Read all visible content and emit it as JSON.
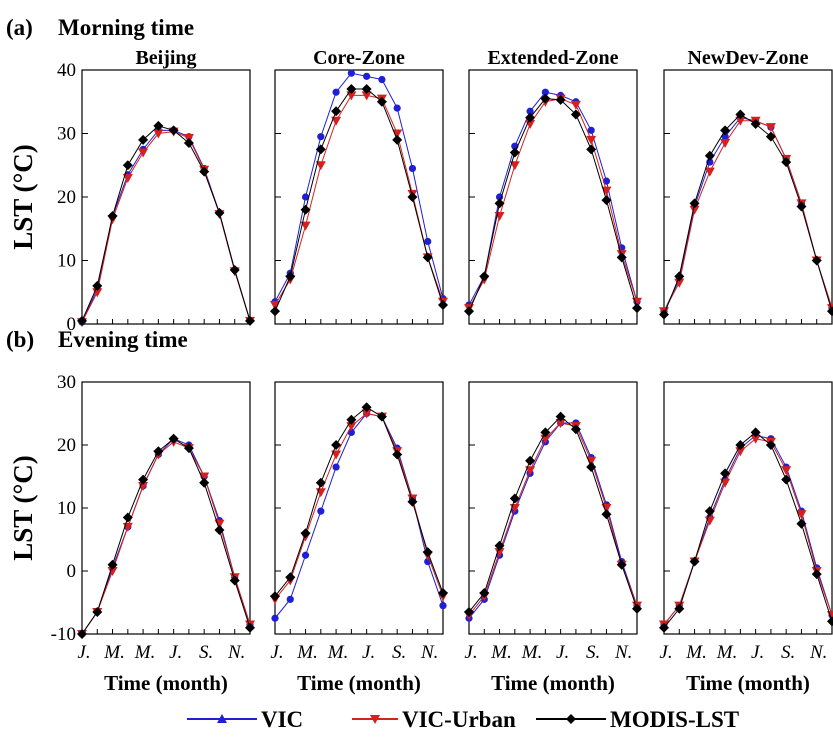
{
  "figure": {
    "legend": [
      {
        "name": "VIC",
        "color": "#1f1fd6",
        "marker": "triangle-up"
      },
      {
        "name": "VIC-Urban",
        "color": "#d62020",
        "marker": "triangle-down"
      },
      {
        "name": "MODIS-LST",
        "color": "#000000",
        "marker": "diamond"
      }
    ],
    "x_tick_labels": [
      "J.",
      "M.",
      "M.",
      "J.",
      "S.",
      "N."
    ]
  },
  "chart_data": [
    {
      "type": "line",
      "panel_label": "(a)",
      "row_title": "Morning time",
      "title": "Beijing",
      "ylabel": "LST (°C)",
      "xlabel": "",
      "ylim": [
        0,
        40
      ],
      "yticks": [
        0,
        10,
        20,
        30,
        40
      ],
      "x": [
        1,
        2,
        3,
        4,
        5,
        6,
        7,
        8,
        9,
        10,
        11,
        12
      ],
      "series": [
        {
          "name": "VIC",
          "values": [
            0.3,
            5.5,
            17.0,
            23.5,
            27.5,
            30.5,
            30.5,
            29.5,
            24.5,
            17.5,
            8.5,
            0.5
          ]
        },
        {
          "name": "VIC-Urban",
          "values": [
            0.3,
            5.0,
            16.5,
            23.0,
            27.0,
            30.0,
            30.3,
            29.3,
            24.3,
            17.3,
            8.3,
            0.5
          ]
        },
        {
          "name": "MODIS-LST",
          "values": [
            0.5,
            6.0,
            17.0,
            25.0,
            29.0,
            31.2,
            30.5,
            28.5,
            24.0,
            17.5,
            8.5,
            0.5
          ]
        }
      ]
    },
    {
      "type": "line",
      "panel_label": "",
      "row_title": "",
      "title": "Core-Zone",
      "ylabel": "",
      "xlabel": "",
      "ylim": [
        0,
        40
      ],
      "x": [
        1,
        2,
        3,
        4,
        5,
        6,
        7,
        8,
        9,
        10,
        11,
        12
      ],
      "series": [
        {
          "name": "VIC",
          "values": [
            3.5,
            8.0,
            20.0,
            29.5,
            36.5,
            39.5,
            39.0,
            38.5,
            34.0,
            24.5,
            13.0,
            4.0
          ]
        },
        {
          "name": "VIC-Urban",
          "values": [
            3.0,
            7.0,
            15.5,
            25.0,
            32.0,
            36.0,
            36.0,
            35.5,
            30.0,
            20.5,
            10.5,
            3.5
          ]
        },
        {
          "name": "MODIS-LST",
          "values": [
            2.0,
            7.5,
            18.0,
            27.5,
            33.5,
            37.0,
            37.0,
            35.0,
            29.0,
            20.0,
            10.5,
            3.0
          ]
        }
      ]
    },
    {
      "type": "line",
      "panel_label": "",
      "row_title": "",
      "title": "Extended-Zone",
      "ylabel": "",
      "xlabel": "",
      "ylim": [
        0,
        40
      ],
      "x": [
        1,
        2,
        3,
        4,
        5,
        6,
        7,
        8,
        9,
        10,
        11,
        12
      ],
      "series": [
        {
          "name": "VIC",
          "values": [
            3.0,
            7.5,
            20.0,
            28.0,
            33.5,
            36.5,
            36.0,
            35.0,
            30.5,
            22.5,
            12.0,
            3.5
          ]
        },
        {
          "name": "VIC-Urban",
          "values": [
            2.5,
            7.0,
            17.0,
            25.0,
            31.5,
            35.0,
            35.5,
            34.5,
            29.0,
            21.0,
            11.0,
            3.5
          ]
        },
        {
          "name": "MODIS-LST",
          "values": [
            2.0,
            7.5,
            19.0,
            27.0,
            32.5,
            35.5,
            35.3,
            33.0,
            27.5,
            19.5,
            10.5,
            2.5
          ]
        }
      ]
    },
    {
      "type": "line",
      "panel_label": "",
      "row_title": "",
      "title": "NewDev-Zone",
      "ylabel": "",
      "xlabel": "",
      "ylim": [
        0,
        40
      ],
      "x": [
        1,
        2,
        3,
        4,
        5,
        6,
        7,
        8,
        9,
        10,
        11,
        12
      ],
      "series": [
        {
          "name": "VIC",
          "values": [
            2.0,
            7.0,
            18.5,
            25.5,
            29.5,
            32.5,
            32.0,
            31.0,
            26.0,
            19.0,
            10.0,
            2.5
          ]
        },
        {
          "name": "VIC-Urban",
          "values": [
            2.0,
            6.5,
            18.0,
            24.0,
            28.5,
            32.0,
            32.0,
            31.0,
            26.0,
            19.0,
            10.0,
            2.5
          ]
        },
        {
          "name": "MODIS-LST",
          "values": [
            1.5,
            7.5,
            19.0,
            26.5,
            30.5,
            33.0,
            31.5,
            29.5,
            25.5,
            18.5,
            10.0,
            2.0
          ]
        }
      ]
    },
    {
      "type": "line",
      "panel_label": "(b)",
      "row_title": "Evening time",
      "title": "",
      "ylabel": "LST (°C)",
      "xlabel": "Time (month)",
      "ylim": [
        -10,
        30
      ],
      "yticks": [
        -10,
        0,
        10,
        20,
        30
      ],
      "x": [
        1,
        2,
        3,
        4,
        5,
        6,
        7,
        8,
        9,
        10,
        11,
        12
      ],
      "series": [
        {
          "name": "VIC",
          "values": [
            -10.0,
            -6.5,
            0.5,
            7.0,
            13.5,
            18.5,
            21.0,
            20.0,
            15.0,
            8.0,
            -1.0,
            -8.5
          ]
        },
        {
          "name": "VIC-Urban",
          "values": [
            -10.0,
            -6.5,
            0.0,
            7.0,
            13.5,
            18.5,
            20.5,
            19.5,
            15.0,
            7.5,
            -1.0,
            -8.5
          ]
        },
        {
          "name": "MODIS-LST",
          "values": [
            -10.0,
            -6.5,
            1.0,
            8.5,
            14.5,
            19.0,
            21.0,
            19.5,
            14.0,
            6.5,
            -1.5,
            -9.0
          ]
        }
      ]
    },
    {
      "type": "line",
      "panel_label": "",
      "row_title": "",
      "title": "",
      "ylabel": "",
      "xlabel": "Time (month)",
      "ylim": [
        -10,
        30
      ],
      "x": [
        1,
        2,
        3,
        4,
        5,
        6,
        7,
        8,
        9,
        10,
        11,
        12
      ],
      "series": [
        {
          "name": "VIC",
          "values": [
            -7.5,
            -4.5,
            2.5,
            9.5,
            16.5,
            22.0,
            25.0,
            24.5,
            19.5,
            11.5,
            1.5,
            -5.5
          ]
        },
        {
          "name": "VIC-Urban",
          "values": [
            -4.5,
            -1.5,
            5.5,
            12.5,
            18.5,
            23.0,
            25.0,
            24.5,
            19.0,
            11.5,
            2.5,
            -4.0
          ]
        },
        {
          "name": "MODIS-LST",
          "values": [
            -4.0,
            -1.0,
            6.0,
            14.0,
            20.0,
            24.0,
            26.0,
            24.5,
            18.5,
            11.0,
            3.0,
            -3.5
          ]
        }
      ]
    },
    {
      "type": "line",
      "panel_label": "",
      "row_title": "",
      "title": "",
      "ylabel": "",
      "xlabel": "Time (month)",
      "ylim": [
        -10,
        30
      ],
      "x": [
        1,
        2,
        3,
        4,
        5,
        6,
        7,
        8,
        9,
        10,
        11,
        12
      ],
      "series": [
        {
          "name": "VIC",
          "values": [
            -7.5,
            -4.5,
            2.5,
            9.5,
            15.5,
            20.5,
            23.5,
            23.5,
            18.0,
            10.5,
            1.5,
            -5.5
          ]
        },
        {
          "name": "VIC-Urban",
          "values": [
            -7.0,
            -4.0,
            3.0,
            10.0,
            16.0,
            21.0,
            23.5,
            23.0,
            17.5,
            10.0,
            1.0,
            -5.5
          ]
        },
        {
          "name": "MODIS-LST",
          "values": [
            -6.5,
            -3.5,
            4.0,
            11.5,
            17.5,
            22.0,
            24.5,
            22.5,
            16.5,
            9.0,
            1.0,
            -6.0
          ]
        }
      ]
    },
    {
      "type": "line",
      "panel_label": "",
      "row_title": "",
      "title": "",
      "ylabel": "",
      "xlabel": "Time (month)",
      "ylim": [
        -10,
        30
      ],
      "x": [
        1,
        2,
        3,
        4,
        5,
        6,
        7,
        8,
        9,
        10,
        11,
        12
      ],
      "series": [
        {
          "name": "VIC",
          "values": [
            -8.5,
            -5.5,
            1.5,
            8.5,
            14.5,
            19.5,
            21.5,
            21.0,
            16.5,
            9.5,
            0.5,
            -7.0
          ]
        },
        {
          "name": "VIC-Urban",
          "values": [
            -8.5,
            -5.5,
            1.5,
            8.0,
            14.0,
            19.0,
            21.0,
            20.5,
            16.0,
            9.0,
            0.0,
            -7.0
          ]
        },
        {
          "name": "MODIS-LST",
          "values": [
            -9.0,
            -6.0,
            1.5,
            9.5,
            15.5,
            20.0,
            22.0,
            20.0,
            14.5,
            7.5,
            -0.5,
            -8.0
          ]
        }
      ]
    }
  ]
}
